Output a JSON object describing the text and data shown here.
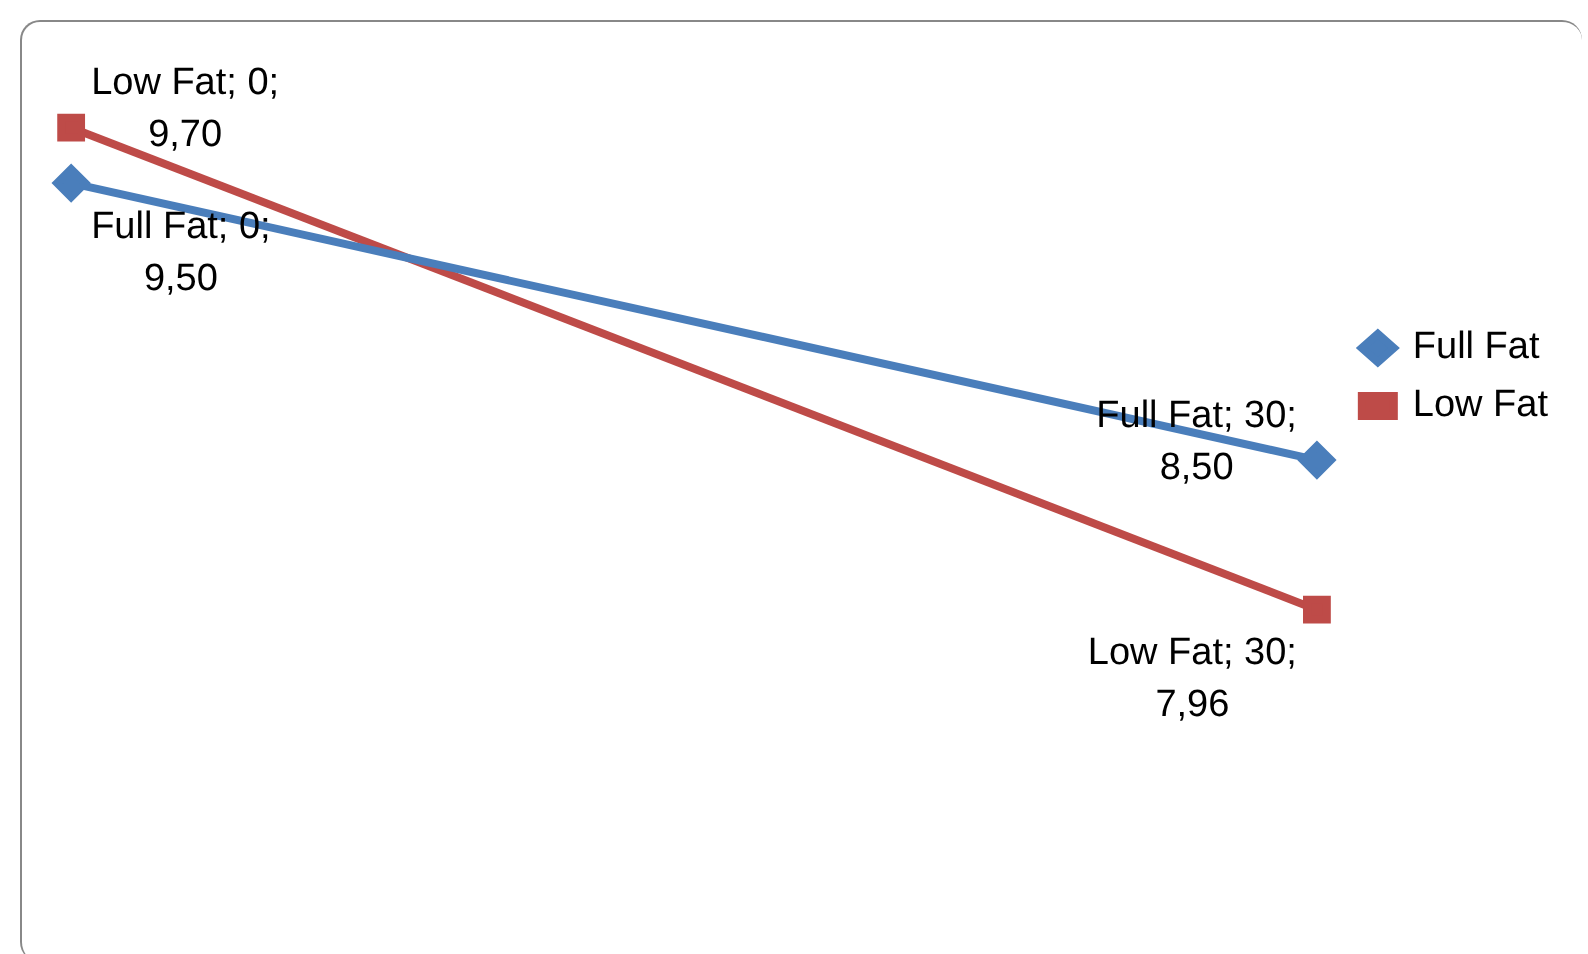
{
  "chart_data": {
    "type": "line",
    "categories": [
      null,
      null
    ],
    "tick_labels": false,
    "grid": false,
    "legend": "right",
    "line_style": "solid",
    "series": [
      {
        "name": "Full Fat",
        "color": "#4a7ebb",
        "marker": "diamond",
        "values": [
          9.5,
          8.5
        ],
        "value_labels": [
          "Full Fat; 0; 9,50",
          "Full Fat; 30; 8,50"
        ]
      },
      {
        "name": "Low Fat",
        "color": "#be4b48",
        "marker": "square",
        "values": [
          9.7,
          7.96
        ],
        "value_labels": [
          "Low Fat; 0; 9,70",
          "Low Fat; 30; 7,96"
        ]
      }
    ]
  }
}
